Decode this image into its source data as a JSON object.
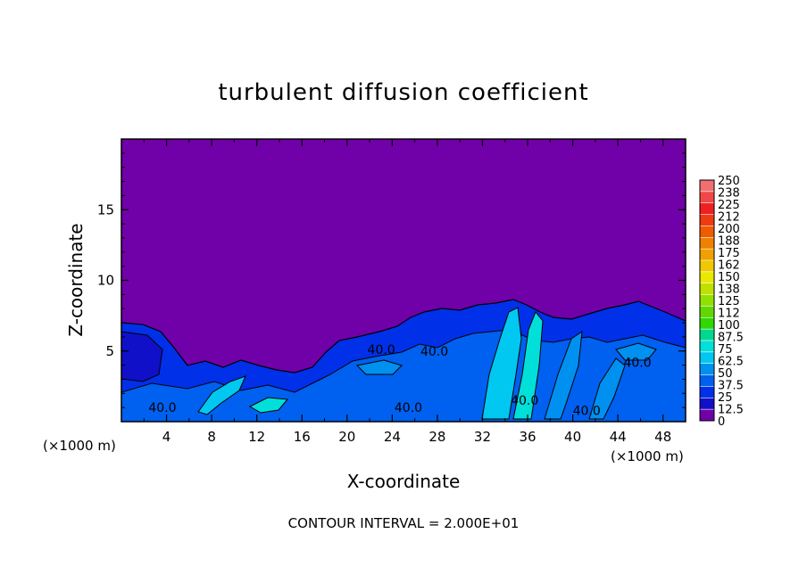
{
  "chart_data": {
    "type": "heatmap",
    "title": "turbulent diffusion coefficient",
    "xlabel": "X-coordinate",
    "ylabel": "Z-coordinate",
    "x_unit_left": "(×1000 m)",
    "x_unit_right": "(×1000 m)",
    "x_ticks": [
      "4",
      "8",
      "12",
      "16",
      "20",
      "24",
      "28",
      "32",
      "36",
      "40",
      "44",
      "48"
    ],
    "y_ticks": [
      "5",
      "10",
      "15"
    ],
    "xlim": [
      0,
      50
    ],
    "ylim": [
      0,
      20
    ],
    "footer": "CONTOUR INTERVAL = 2.000E+01",
    "contour_labels": [
      "40.0",
      "40.0",
      "40.0",
      "40.0",
      "40.0",
      "40.0",
      "40.0"
    ],
    "colorbar": {
      "labels": [
        "250",
        "238",
        "225",
        "212",
        "200",
        "188",
        "175",
        "162",
        "150",
        "138",
        "125",
        "112",
        "100",
        "87.5",
        "75",
        "62.5",
        "50",
        "37.5",
        "25",
        "12.5",
        "0"
      ],
      "colors": [
        "#f07070",
        "#f04848",
        "#f02020",
        "#f03a10",
        "#f05a00",
        "#f08000",
        "#f0a000",
        "#f0c800",
        "#e8e800",
        "#c0e000",
        "#90e000",
        "#60d800",
        "#30d800",
        "#00d890",
        "#00e0d8",
        "#00c8f0",
        "#0090f0",
        "#0060f0",
        "#0030e8",
        "#1010c8",
        "#7000a8"
      ]
    },
    "background_value_color": "#7000a8",
    "low_level_colors": [
      "#0030e8",
      "#0060f0",
      "#0090f0",
      "#00e0d8",
      "#1010c8"
    ]
  }
}
